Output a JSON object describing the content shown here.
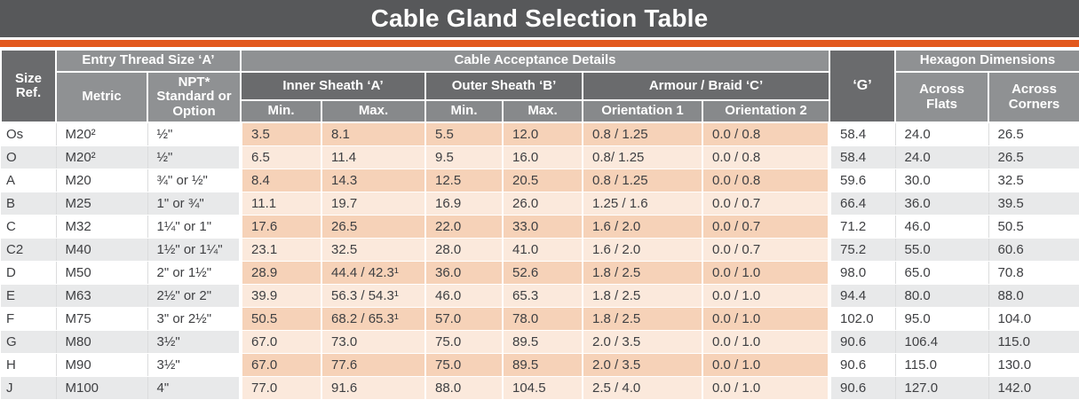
{
  "title": "Cable Gland Selection Table",
  "colors": {
    "accent_orange": "#E2581D",
    "title_bar_bg": "#57585A",
    "header_dark": "#6A6B6D",
    "header_mid": "#8F9193",
    "header_sub": "#87898B",
    "stripe_gray": "#E8E9EA",
    "stripe_peach_dark": "#F6D2B8",
    "stripe_peach_light": "#FBE9DC"
  },
  "header": {
    "size_ref": "Size\nRef.",
    "entry_thread": "Entry Thread Size ‘A’",
    "metric": "Metric",
    "npt": "NPT*\nStandard or\nOption",
    "cable_acceptance": "Cable Acceptance Details",
    "inner_sheath": "Inner Sheath ‘A’",
    "outer_sheath": "Outer Sheath ‘B’",
    "armour_braid": "Armour / Braid ‘C’",
    "inner_min": "Min.",
    "inner_max": "Max.",
    "outer_min": "Min.",
    "outer_max": "Max.",
    "orientation_1": "Orientation 1",
    "orientation_2": "Orientation 2",
    "g": "‘G’",
    "hexagon": "Hexagon Dimensions",
    "across_flats": "Across\nFlats",
    "across_corners": "Across\nCorners"
  },
  "column_keys": [
    "size_ref",
    "metric",
    "npt",
    "inner_min",
    "inner_max",
    "outer_min",
    "outer_max",
    "orientation_1",
    "orientation_2",
    "g",
    "across_flats",
    "across_corners"
  ],
  "rows": [
    [
      "Os",
      "M20²",
      "½\"",
      "3.5",
      "8.1",
      "5.5",
      "12.0",
      "0.8 / 1.25",
      "0.0 / 0.8",
      "58.4",
      "24.0",
      "26.5"
    ],
    [
      "O",
      "M20²",
      "½\"",
      "6.5",
      "11.4",
      "9.5",
      "16.0",
      "0.8/ 1.25",
      "0.0 / 0.8",
      "58.4",
      "24.0",
      "26.5"
    ],
    [
      "A",
      "M20",
      "¾\" or ½\"",
      "8.4",
      "14.3",
      "12.5",
      "20.5",
      "0.8 / 1.25",
      "0.0 / 0.8",
      "59.6",
      "30.0",
      "32.5"
    ],
    [
      "B",
      "M25",
      "1\" or ¾\"",
      "11.1",
      "19.7",
      "16.9",
      "26.0",
      "1.25 / 1.6",
      "0.0 / 0.7",
      "66.4",
      "36.0",
      "39.5"
    ],
    [
      "C",
      "M32",
      "1¼\" or 1\"",
      "17.6",
      "26.5",
      "22.0",
      "33.0",
      "1.6 / 2.0",
      "0.0 / 0.7",
      "71.2",
      "46.0",
      "50.5"
    ],
    [
      "C2",
      "M40",
      "1½\" or 1¼\"",
      "23.1",
      "32.5",
      "28.0",
      "41.0",
      "1.6 / 2.0",
      "0.0 / 0.7",
      "75.2",
      "55.0",
      "60.6"
    ],
    [
      "D",
      "M50",
      "2\" or 1½\"",
      "28.9",
      "44.4 / 42.3¹",
      "36.0",
      "52.6",
      "1.8 / 2.5",
      "0.0 / 1.0",
      "98.0",
      "65.0",
      "70.8"
    ],
    [
      "E",
      "M63",
      "2½\" or 2\"",
      "39.9",
      "56.3 / 54.3¹",
      "46.0",
      "65.3",
      "1.8 / 2.5",
      "0.0 / 1.0",
      "94.4",
      "80.0",
      "88.0"
    ],
    [
      "F",
      "M75",
      "3\" or 2½\"",
      "50.5",
      "68.2 / 65.3¹",
      "57.0",
      "78.0",
      "1.8 / 2.5",
      "0.0 / 1.0",
      "102.0",
      "95.0",
      "104.0"
    ],
    [
      "G",
      "M80",
      "3½\"",
      "67.0",
      "73.0",
      "75.0",
      "89.5",
      "2.0 / 3.5",
      "0.0 / 1.0",
      "90.6",
      "106.4",
      "115.0"
    ],
    [
      "H",
      "M90",
      "3½\"",
      "67.0",
      "77.6",
      "75.0",
      "89.5",
      "2.0 / 3.5",
      "0.0 / 1.0",
      "90.6",
      "115.0",
      "130.0"
    ],
    [
      "J",
      "M100",
      "4\"",
      "77.0",
      "91.6",
      "88.0",
      "104.5",
      "2.5 / 4.0",
      "0.0 / 1.0",
      "90.6",
      "127.0",
      "142.0"
    ]
  ]
}
